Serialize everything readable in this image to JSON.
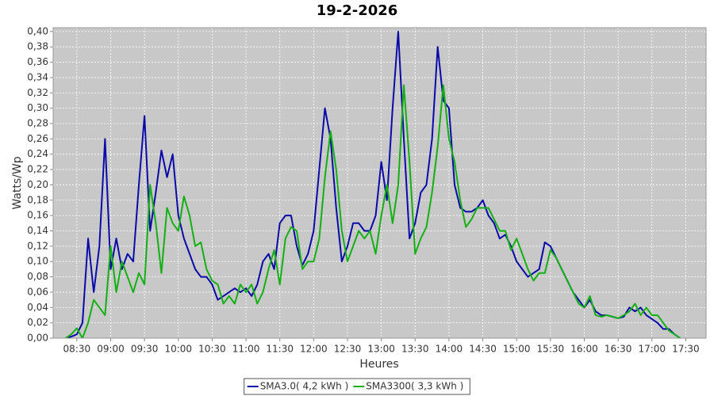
{
  "chart_data": {
    "type": "line",
    "title": "19-2-2026",
    "ylabel": "Watts/Wp",
    "xlabel": "Heures",
    "x": [
      "08:20",
      "08:25",
      "08:30",
      "08:35",
      "08:40",
      "08:45",
      "08:50",
      "08:55",
      "09:00",
      "09:05",
      "09:10",
      "09:15",
      "09:20",
      "09:25",
      "09:30",
      "09:35",
      "09:40",
      "09:45",
      "09:50",
      "09:55",
      "10:00",
      "10:05",
      "10:10",
      "10:15",
      "10:20",
      "10:25",
      "10:30",
      "10:35",
      "10:40",
      "10:45",
      "10:50",
      "10:55",
      "11:00",
      "11:05",
      "11:10",
      "11:15",
      "11:20",
      "11:25",
      "11:30",
      "11:35",
      "11:40",
      "11:45",
      "11:50",
      "11:55",
      "12:00",
      "12:05",
      "12:10",
      "12:15",
      "12:20",
      "12:25",
      "12:30",
      "12:35",
      "12:40",
      "12:45",
      "12:50",
      "12:55",
      "13:00",
      "13:05",
      "13:10",
      "13:15",
      "13:20",
      "13:25",
      "13:30",
      "13:35",
      "13:40",
      "13:45",
      "13:50",
      "13:55",
      "14:00",
      "14:05",
      "14:10",
      "14:15",
      "14:20",
      "14:25",
      "14:30",
      "14:35",
      "14:40",
      "14:45",
      "14:50",
      "14:55",
      "15:00",
      "15:05",
      "15:10",
      "15:15",
      "15:20",
      "15:25",
      "15:30",
      "15:35",
      "15:40",
      "15:45",
      "15:50",
      "15:55",
      "16:00",
      "16:05",
      "16:10",
      "16:15",
      "16:20",
      "16:25",
      "16:30",
      "16:35",
      "16:40",
      "16:45",
      "16:50",
      "16:55",
      "17:00",
      "17:05",
      "17:10",
      "17:15",
      "17:20",
      "17:25"
    ],
    "series": [
      {
        "name": "SMA3.0( 4,2 kWh )",
        "color": "#0a0aa8",
        "values": [
          0,
          0.002,
          0.005,
          0.02,
          0.13,
          0.06,
          0.12,
          0.26,
          0.09,
          0.13,
          0.09,
          0.11,
          0.1,
          0.2,
          0.29,
          0.14,
          0.19,
          0.245,
          0.21,
          0.24,
          0.16,
          0.13,
          0.11,
          0.09,
          0.08,
          0.08,
          0.07,
          0.05,
          0.055,
          0.06,
          0.065,
          0.06,
          0.065,
          0.055,
          0.07,
          0.1,
          0.11,
          0.09,
          0.15,
          0.16,
          0.16,
          0.12,
          0.095,
          0.11,
          0.14,
          0.22,
          0.3,
          0.26,
          0.17,
          0.1,
          0.12,
          0.15,
          0.15,
          0.14,
          0.14,
          0.16,
          0.23,
          0.18,
          0.3,
          0.4,
          0.26,
          0.13,
          0.15,
          0.19,
          0.2,
          0.26,
          0.38,
          0.31,
          0.3,
          0.2,
          0.17,
          0.165,
          0.165,
          0.17,
          0.18,
          0.16,
          0.15,
          0.13,
          0.135,
          0.12,
          0.1,
          0.09,
          0.08,
          0.085,
          0.09,
          0.125,
          0.12,
          0.105,
          0.09,
          0.075,
          0.06,
          0.05,
          0.04,
          0.05,
          0.035,
          0.03,
          0.03,
          0.028,
          0.026,
          0.028,
          0.04,
          0.035,
          0.04,
          0.03,
          0.025,
          0.02,
          0.012,
          0.012,
          0.005,
          0
        ]
      },
      {
        "name": "SMA3300( 3,3 kWh )",
        "color": "#12b012",
        "values": [
          0,
          0.005,
          0.013,
          0,
          0.02,
          0.05,
          0.04,
          0.03,
          0.12,
          0.06,
          0.1,
          0.08,
          0.06,
          0.085,
          0.07,
          0.2,
          0.15,
          0.085,
          0.17,
          0.15,
          0.14,
          0.185,
          0.16,
          0.12,
          0.125,
          0.09,
          0.075,
          0.07,
          0.045,
          0.055,
          0.045,
          0.07,
          0.06,
          0.07,
          0.045,
          0.06,
          0.09,
          0.115,
          0.07,
          0.13,
          0.145,
          0.14,
          0.09,
          0.1,
          0.1,
          0.13,
          0.21,
          0.27,
          0.22,
          0.14,
          0.1,
          0.12,
          0.14,
          0.13,
          0.14,
          0.11,
          0.16,
          0.2,
          0.15,
          0.2,
          0.33,
          0.23,
          0.11,
          0.13,
          0.145,
          0.19,
          0.25,
          0.33,
          0.26,
          0.23,
          0.18,
          0.145,
          0.155,
          0.17,
          0.17,
          0.17,
          0.155,
          0.14,
          0.14,
          0.115,
          0.13,
          0.11,
          0.09,
          0.075,
          0.085,
          0.085,
          0.115,
          0.105,
          0.09,
          0.075,
          0.06,
          0.045,
          0.04,
          0.055,
          0.03,
          0.028,
          0.03,
          0.028,
          0.026,
          0.03,
          0.035,
          0.045,
          0.03,
          0.04,
          0.03,
          0.03,
          0.02,
          0.01,
          0.005,
          0
        ]
      }
    ],
    "xlim": [
      "08:09",
      "17:48"
    ],
    "xticks": [
      "08:30",
      "09:00",
      "09:30",
      "10:00",
      "10:30",
      "11:00",
      "11:30",
      "12:00",
      "12:30",
      "13:00",
      "13:30",
      "14:00",
      "14:30",
      "15:00",
      "15:30",
      "16:00",
      "16:30",
      "17:00",
      "17:30"
    ],
    "ylim": [
      0,
      0.405
    ],
    "yticks": [
      {
        "value": 0,
        "label": "0,00"
      },
      {
        "value": 0.02,
        "label": "0,02"
      },
      {
        "value": 0.04,
        "label": "0,04"
      },
      {
        "value": 0.06,
        "label": "0,06"
      },
      {
        "value": 0.08,
        "label": "0,08"
      },
      {
        "value": 0.1,
        "label": "0,10"
      },
      {
        "value": 0.12,
        "label": "0,12"
      },
      {
        "value": 0.14,
        "label": "0,14"
      },
      {
        "value": 0.16,
        "label": "0,16"
      },
      {
        "value": 0.18,
        "label": "0,18"
      },
      {
        "value": 0.2,
        "label": "0,20"
      },
      {
        "value": 0.22,
        "label": "0,22"
      },
      {
        "value": 0.24,
        "label": "0,24"
      },
      {
        "value": 0.26,
        "label": "0,26"
      },
      {
        "value": 0.28,
        "label": "0,28"
      },
      {
        "value": 0.3,
        "label": "0,30"
      },
      {
        "value": 0.32,
        "label": "0,32"
      },
      {
        "value": 0.34,
        "label": "0,34"
      },
      {
        "value": 0.36,
        "label": "0,36"
      },
      {
        "value": 0.38,
        "label": "0,38"
      },
      {
        "value": 0.4,
        "label": "0,40"
      }
    ],
    "grid": true,
    "legend": "bottom"
  }
}
